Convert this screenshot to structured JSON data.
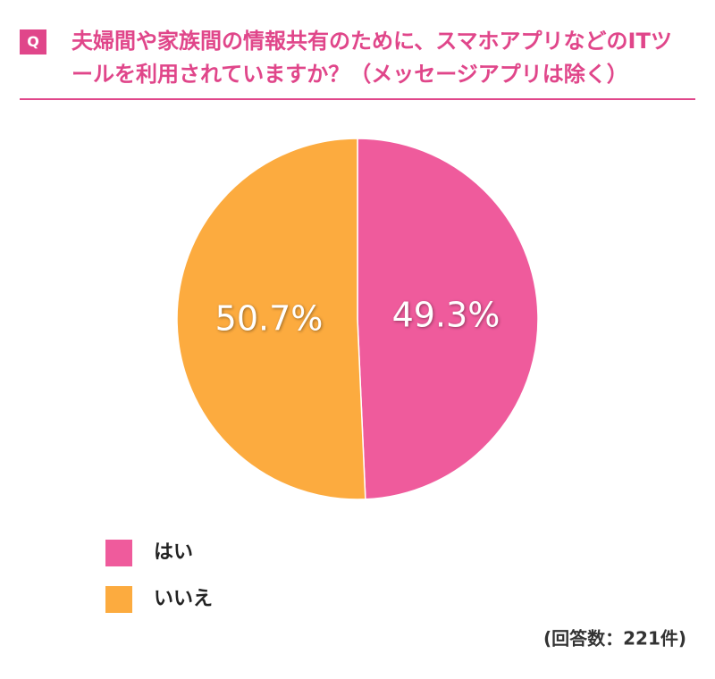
{
  "chart_data": {
    "type": "pie",
    "question_label": "Q",
    "title": "夫婦間や家族間の情報共有のために、スマホアプリなどのITツールを利用されていますか？（メッセージアプリは除く）",
    "categories": [
      "はい",
      "いいえ"
    ],
    "values": [
      49.3,
      50.7
    ],
    "value_labels": [
      "49.3%",
      "50.7%"
    ],
    "colors": [
      "#ef5b9c",
      "#fcab3f"
    ],
    "note": "(回答数：221件)"
  }
}
